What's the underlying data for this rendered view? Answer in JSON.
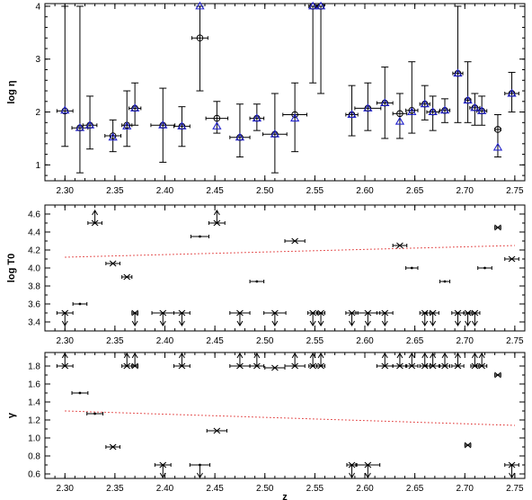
{
  "chart_data": [
    {
      "type": "scatter",
      "ylabel": "log η",
      "xlim": [
        2.28,
        2.76
      ],
      "ylim": [
        0.7,
        4.05
      ],
      "xticks": [
        "2.30",
        "2.35",
        "2.40",
        "2.45",
        "2.50",
        "2.55",
        "2.60",
        "2.65",
        "2.70",
        "2.75"
      ],
      "yticks": [
        "1",
        "2",
        "3",
        "4"
      ],
      "grid": false,
      "series": [
        {
          "marker": "circle",
          "color": "#000000",
          "points": [
            {
              "x": 2.3,
              "y": 2.02,
              "ylo": 1.35,
              "yhi": 4.0,
              "xerr": 0.008
            },
            {
              "x": 2.315,
              "y": 1.7,
              "ylo": 0.85,
              "yhi": 4.0,
              "xerr": 0.008
            },
            {
              "x": 2.325,
              "y": 1.75,
              "ylo": 1.3,
              "yhi": 2.3,
              "xerr": 0.007
            },
            {
              "x": 2.348,
              "y": 1.55,
              "ylo": 1.25,
              "yhi": 1.85,
              "xerr": 0.008
            },
            {
              "x": 2.362,
              "y": 1.75,
              "ylo": 1.35,
              "yhi": 2.4,
              "xerr": 0.005
            },
            {
              "x": 2.37,
              "y": 2.07,
              "ylo": 1.75,
              "yhi": 2.55,
              "xerr": 0.006
            },
            {
              "x": 2.398,
              "y": 1.75,
              "ylo": 1.05,
              "yhi": 2.45,
              "xerr": 0.012
            },
            {
              "x": 2.417,
              "y": 1.73,
              "ylo": 1.35,
              "yhi": 2.1,
              "xerr": 0.008
            },
            {
              "x": 2.435,
              "y": 3.4,
              "ylo": 2.4,
              "yhi": 4.0,
              "xerr": 0.008
            },
            {
              "x": 2.452,
              "y": 1.88,
              "ylo": 1.6,
              "yhi": 2.2,
              "xerr": 0.011
            },
            {
              "x": 2.475,
              "y": 1.52,
              "ylo": 1.15,
              "yhi": 2.15,
              "xerr": 0.01
            },
            {
              "x": 2.492,
              "y": 1.88,
              "ylo": 1.65,
              "yhi": 2.15,
              "xerr": 0.007
            },
            {
              "x": 2.51,
              "y": 1.58,
              "ylo": 0.85,
              "yhi": 2.35,
              "xerr": 0.012
            },
            {
              "x": 2.53,
              "y": 1.95,
              "ylo": 1.25,
              "yhi": 2.55,
              "xerr": 0.012
            },
            {
              "x": 2.548,
              "y": 4.0,
              "ylo": 2.55,
              "yhi": 4.0,
              "xerr": 0.004
            },
            {
              "x": 2.556,
              "y": 4.0,
              "ylo": 2.35,
              "yhi": 4.0,
              "xerr": 0.003
            },
            {
              "x": 2.587,
              "y": 1.95,
              "ylo": 1.55,
              "yhi": 2.5,
              "xerr": 0.006
            },
            {
              "x": 2.603,
              "y": 2.07,
              "ylo": 1.65,
              "yhi": 2.55,
              "xerr": 0.013
            },
            {
              "x": 2.62,
              "y": 2.17,
              "ylo": 1.5,
              "yhi": 2.85,
              "xerr": 0.008
            },
            {
              "x": 2.635,
              "y": 1.97,
              "ylo": 1.5,
              "yhi": 2.35,
              "xerr": 0.007
            },
            {
              "x": 2.647,
              "y": 2.03,
              "ylo": 1.6,
              "yhi": 2.95,
              "xerr": 0.006
            },
            {
              "x": 2.66,
              "y": 2.15,
              "ylo": 1.85,
              "yhi": 2.5,
              "xerr": 0.005
            },
            {
              "x": 2.668,
              "y": 2.0,
              "ylo": 1.65,
              "yhi": 2.3,
              "xerr": 0.006
            },
            {
              "x": 2.68,
              "y": 2.03,
              "ylo": 1.8,
              "yhi": 2.25,
              "xerr": 0.005
            },
            {
              "x": 2.693,
              "y": 2.73,
              "ylo": 1.8,
              "yhi": 4.0,
              "xerr": 0.005
            },
            {
              "x": 2.703,
              "y": 2.22,
              "ylo": 1.8,
              "yhi": 2.95,
              "xerr": 0.003
            },
            {
              "x": 2.71,
              "y": 2.08,
              "ylo": 1.75,
              "yhi": 2.35,
              "xerr": 0.005
            },
            {
              "x": 2.717,
              "y": 2.02,
              "ylo": 1.75,
              "yhi": 2.3,
              "xerr": 0.005
            },
            {
              "x": 2.733,
              "y": 1.67,
              "ylo": 1.15,
              "yhi": 1.95,
              "xerr": 0.003
            },
            {
              "x": 2.747,
              "y": 2.35,
              "ylo": 2.0,
              "yhi": 2.75,
              "xerr": 0.007
            }
          ]
        },
        {
          "marker": "triangle",
          "color": "#2222cc",
          "points": [
            {
              "x": 2.3,
              "y": 2.03
            },
            {
              "x": 2.315,
              "y": 1.7
            },
            {
              "x": 2.325,
              "y": 1.75
            },
            {
              "x": 2.348,
              "y": 1.52
            },
            {
              "x": 2.362,
              "y": 1.73
            },
            {
              "x": 2.37,
              "y": 2.07
            },
            {
              "x": 2.398,
              "y": 1.75
            },
            {
              "x": 2.417,
              "y": 1.73
            },
            {
              "x": 2.435,
              "y": 4.0
            },
            {
              "x": 2.452,
              "y": 1.73
            },
            {
              "x": 2.475,
              "y": 1.52
            },
            {
              "x": 2.492,
              "y": 1.88
            },
            {
              "x": 2.51,
              "y": 1.58
            },
            {
              "x": 2.53,
              "y": 1.88
            },
            {
              "x": 2.548,
              "y": 4.0
            },
            {
              "x": 2.556,
              "y": 4.0
            },
            {
              "x": 2.587,
              "y": 1.95
            },
            {
              "x": 2.603,
              "y": 2.07
            },
            {
              "x": 2.62,
              "y": 2.17
            },
            {
              "x": 2.635,
              "y": 1.82
            },
            {
              "x": 2.647,
              "y": 2.0
            },
            {
              "x": 2.66,
              "y": 2.15
            },
            {
              "x": 2.668,
              "y": 2.0
            },
            {
              "x": 2.68,
              "y": 2.03
            },
            {
              "x": 2.693,
              "y": 2.73
            },
            {
              "x": 2.703,
              "y": 2.22
            },
            {
              "x": 2.71,
              "y": 2.08
            },
            {
              "x": 2.717,
              "y": 2.02
            },
            {
              "x": 2.733,
              "y": 1.33
            },
            {
              "x": 2.747,
              "y": 2.35
            }
          ]
        }
      ]
    },
    {
      "type": "scatter",
      "ylabel": "log T0",
      "xlim": [
        2.28,
        2.76
      ],
      "ylim": [
        3.3,
        4.7
      ],
      "xticks": [
        "2.30",
        "2.35",
        "2.40",
        "2.45",
        "2.50",
        "2.55",
        "2.60",
        "2.65",
        "2.70",
        "2.75"
      ],
      "yticks": [
        "3.4",
        "3.6",
        "3.8",
        "4.0",
        "4.2",
        "4.4",
        "4.6"
      ],
      "grid": false,
      "fit_line": {
        "x": [
          2.3,
          2.75
        ],
        "y": [
          4.12,
          4.25
        ],
        "color": "#dd2222",
        "style": "dotted"
      },
      "points": [
        {
          "x": 2.3,
          "y": 3.5,
          "xerr": 0.008,
          "limit": "upper"
        },
        {
          "x": 2.315,
          "y": 3.6,
          "xerr": 0.007,
          "marker": "dot"
        },
        {
          "x": 2.33,
          "y": 4.5,
          "xerr": 0.007,
          "limit": "lower"
        },
        {
          "x": 2.348,
          "y": 4.05,
          "xerr": 0.007
        },
        {
          "x": 2.362,
          "y": 3.9,
          "xerr": 0.005
        },
        {
          "x": 2.37,
          "y": 3.5,
          "xerr": 0.003,
          "limit": "upper"
        },
        {
          "x": 2.398,
          "y": 3.5,
          "xerr": 0.011,
          "limit": "upper"
        },
        {
          "x": 2.417,
          "y": 3.5,
          "xerr": 0.008,
          "limit": "upper"
        },
        {
          "x": 2.435,
          "y": 4.35,
          "xerr": 0.009,
          "marker": "dot"
        },
        {
          "x": 2.452,
          "y": 4.5,
          "xerr": 0.008,
          "limit": "lower"
        },
        {
          "x": 2.475,
          "y": 3.5,
          "xerr": 0.01,
          "limit": "upper"
        },
        {
          "x": 2.492,
          "y": 3.85,
          "xerr": 0.007,
          "marker": "dot"
        },
        {
          "x": 2.51,
          "y": 3.5,
          "xerr": 0.011,
          "limit": "upper"
        },
        {
          "x": 2.53,
          "y": 4.3,
          "xerr": 0.01
        },
        {
          "x": 2.548,
          "y": 3.5,
          "xerr": 0.005,
          "limit": "upper"
        },
        {
          "x": 2.556,
          "y": 3.5,
          "xerr": 0.004,
          "limit": "upper"
        },
        {
          "x": 2.587,
          "y": 3.5,
          "xerr": 0.006,
          "limit": "upper"
        },
        {
          "x": 2.603,
          "y": 3.5,
          "xerr": 0.012,
          "limit": "upper"
        },
        {
          "x": 2.62,
          "y": 3.5,
          "xerr": 0.008,
          "limit": "upper"
        },
        {
          "x": 2.635,
          "y": 4.25,
          "xerr": 0.007
        },
        {
          "x": 2.647,
          "y": 4.0,
          "xerr": 0.006,
          "marker": "dot"
        },
        {
          "x": 2.66,
          "y": 3.5,
          "xerr": 0.005,
          "limit": "upper"
        },
        {
          "x": 2.668,
          "y": 3.5,
          "xerr": 0.006,
          "limit": "upper"
        },
        {
          "x": 2.68,
          "y": 3.85,
          "xerr": 0.005,
          "marker": "dot"
        },
        {
          "x": 2.693,
          "y": 3.5,
          "xerr": 0.006,
          "limit": "upper"
        },
        {
          "x": 2.703,
          "y": 3.5,
          "xerr": 0.004,
          "limit": "upper"
        },
        {
          "x": 2.71,
          "y": 3.5,
          "xerr": 0.005,
          "limit": "upper"
        },
        {
          "x": 2.72,
          "y": 4.0,
          "xerr": 0.007,
          "marker": "dot"
        },
        {
          "x": 2.733,
          "y": 4.45,
          "xerr": 0.003
        },
        {
          "x": 2.747,
          "y": 4.1,
          "xerr": 0.007
        }
      ]
    },
    {
      "type": "scatter",
      "ylabel": "γ",
      "xlabel": "z",
      "xlim": [
        2.28,
        2.76
      ],
      "ylim": [
        0.55,
        1.95
      ],
      "xticks": [
        "2.30",
        "2.35",
        "2.40",
        "2.45",
        "2.50",
        "2.55",
        "2.60",
        "2.65",
        "2.70",
        "2.75"
      ],
      "yticks": [
        "0.6",
        "0.8",
        "1.0",
        "1.2",
        "1.4",
        "1.6",
        "1.8"
      ],
      "grid": false,
      "fit_line": {
        "x": [
          2.3,
          2.75
        ],
        "y": [
          1.3,
          1.14
        ],
        "color": "#dd2222",
        "style": "dotted"
      },
      "points": [
        {
          "x": 2.3,
          "y": 1.8,
          "xerr": 0.008,
          "limit": "lower"
        },
        {
          "x": 2.315,
          "y": 1.5,
          "xerr": 0.008,
          "marker": "dot"
        },
        {
          "x": 2.33,
          "y": 1.27,
          "xerr": 0.008,
          "marker": "dot"
        },
        {
          "x": 2.348,
          "y": 0.9,
          "xerr": 0.007
        },
        {
          "x": 2.362,
          "y": 1.8,
          "xerr": 0.005,
          "limit": "lower"
        },
        {
          "x": 2.37,
          "y": 1.8,
          "xerr": 0.003,
          "limit": "lower"
        },
        {
          "x": 2.398,
          "y": 0.7,
          "xerr": 0.008,
          "limit": "upper"
        },
        {
          "x": 2.417,
          "y": 1.8,
          "xerr": 0.008,
          "limit": "lower"
        },
        {
          "x": 2.435,
          "y": 0.7,
          "xerr": 0.01,
          "limit": "upper",
          "marker": "dot"
        },
        {
          "x": 2.452,
          "y": 1.08,
          "xerr": 0.01
        },
        {
          "x": 2.475,
          "y": 1.8,
          "xerr": 0.01,
          "limit": "lower"
        },
        {
          "x": 2.492,
          "y": 1.8,
          "xerr": 0.007,
          "limit": "lower"
        },
        {
          "x": 2.51,
          "y": 1.78,
          "xerr": 0.01
        },
        {
          "x": 2.53,
          "y": 1.8,
          "xerr": 0.01,
          "limit": "lower"
        },
        {
          "x": 2.548,
          "y": 1.8,
          "xerr": 0.004,
          "limit": "lower"
        },
        {
          "x": 2.556,
          "y": 1.8,
          "xerr": 0.004,
          "limit": "lower"
        },
        {
          "x": 2.587,
          "y": 0.7,
          "xerr": 0.005,
          "limit": "upper"
        },
        {
          "x": 2.603,
          "y": 0.7,
          "xerr": 0.012,
          "limit": "upper"
        },
        {
          "x": 2.62,
          "y": 1.8,
          "xerr": 0.008,
          "limit": "lower"
        },
        {
          "x": 2.635,
          "y": 1.8,
          "xerr": 0.007,
          "limit": "lower"
        },
        {
          "x": 2.647,
          "y": 1.8,
          "xerr": 0.006,
          "limit": "lower"
        },
        {
          "x": 2.66,
          "y": 1.8,
          "xerr": 0.005,
          "limit": "lower"
        },
        {
          "x": 2.668,
          "y": 1.8,
          "xerr": 0.006,
          "limit": "lower"
        },
        {
          "x": 2.68,
          "y": 1.8,
          "xerr": 0.005,
          "limit": "lower"
        },
        {
          "x": 2.693,
          "y": 1.8,
          "xerr": 0.006,
          "limit": "lower"
        },
        {
          "x": 2.703,
          "y": 0.92,
          "xerr": 0.003
        },
        {
          "x": 2.71,
          "y": 1.8,
          "xerr": 0.004,
          "limit": "lower"
        },
        {
          "x": 2.717,
          "y": 1.8,
          "xerr": 0.005,
          "limit": "lower"
        },
        {
          "x": 2.733,
          "y": 1.7,
          "xerr": 0.003
        },
        {
          "x": 2.747,
          "y": 0.7,
          "xerr": 0.007,
          "limit": "upper"
        }
      ]
    }
  ]
}
